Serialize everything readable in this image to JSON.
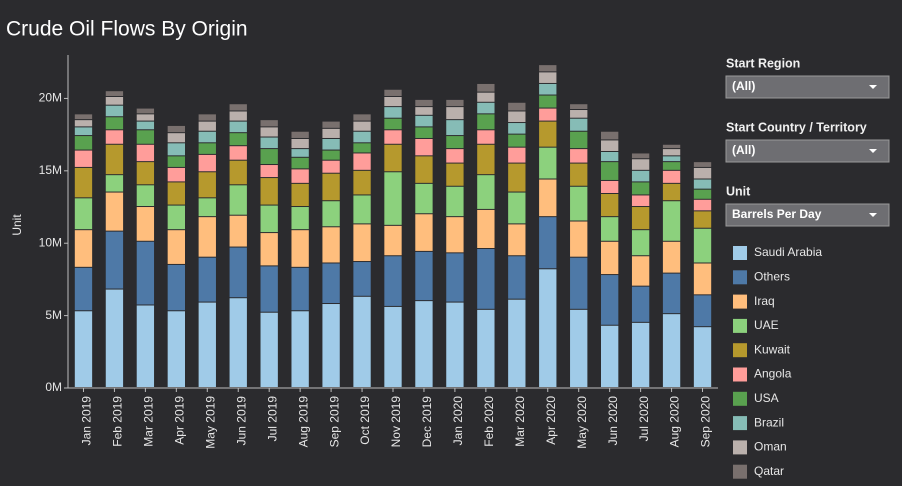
{
  "chart_data": {
    "type": "stacked-bar",
    "title": "Crude Oil Flows By Origin",
    "y_label": "Unit",
    "categories": [
      "Jan 2019",
      "Feb 2019",
      "Mar 2019",
      "Apr 2019",
      "May 2019",
      "Jun 2019",
      "Jul 2019",
      "Aug 2019",
      "Sep 2019",
      "Oct 2019",
      "Nov 2019",
      "Dec 2019",
      "Jan 2020",
      "Feb 2020",
      "Mar 2020",
      "Apr 2020",
      "May 2020",
      "Jun 2020",
      "Jul 2020",
      "Aug 2020",
      "Sep 2020"
    ],
    "ylim": [
      0,
      23000000
    ],
    "yticks": [
      {
        "value": 0,
        "label": "0M"
      },
      {
        "value": 5000000,
        "label": "5M"
      },
      {
        "value": 10000000,
        "label": "10M"
      },
      {
        "value": 15000000,
        "label": "15M"
      },
      {
        "value": 20000000,
        "label": "20M"
      }
    ],
    "grid": false,
    "series": [
      {
        "name": "Saudi Arabia",
        "color": "#a0cbe8",
        "values": [
          5300000,
          6800000,
          5700000,
          5300000,
          5900000,
          6200000,
          5200000,
          5300000,
          5800000,
          6300000,
          5600000,
          6000000,
          5900000,
          5400000,
          6100000,
          8200000,
          5400000,
          4300000,
          4500000,
          5100000,
          4200000
        ]
      },
      {
        "name": "Others",
        "color": "#4e79a7",
        "values": [
          3000000,
          4000000,
          4400000,
          3200000,
          3100000,
          3500000,
          3200000,
          3000000,
          2800000,
          2400000,
          3500000,
          3400000,
          3400000,
          4200000,
          3000000,
          3600000,
          3600000,
          3500000,
          2500000,
          2800000,
          2200000
        ]
      },
      {
        "name": "Iraq",
        "color": "#ffbe7d",
        "values": [
          2600000,
          2700000,
          2400000,
          2400000,
          2800000,
          2200000,
          2300000,
          2600000,
          2500000,
          2600000,
          2100000,
          2600000,
          2500000,
          2700000,
          2200000,
          2600000,
          2500000,
          2300000,
          2100000,
          2200000,
          2200000
        ]
      },
      {
        "name": "UAE",
        "color": "#8cd17d",
        "values": [
          2200000,
          1200000,
          1500000,
          1700000,
          1300000,
          2100000,
          1900000,
          1600000,
          1800000,
          2000000,
          3700000,
          2100000,
          2100000,
          2400000,
          2200000,
          2200000,
          2400000,
          1700000,
          1800000,
          2800000,
          2400000
        ]
      },
      {
        "name": "Kuwait",
        "color": "#b6992d",
        "values": [
          2100000,
          2100000,
          1600000,
          1600000,
          1800000,
          1700000,
          1900000,
          1600000,
          1900000,
          1700000,
          1900000,
          1900000,
          1600000,
          2100000,
          2000000,
          1800000,
          1600000,
          1600000,
          1600000,
          1200000,
          1200000
        ]
      },
      {
        "name": "Angola",
        "color": "#ff9d9a",
        "values": [
          1200000,
          1000000,
          1200000,
          1000000,
          1200000,
          1000000,
          900000,
          1000000,
          900000,
          1200000,
          1000000,
          1200000,
          1000000,
          1000000,
          1100000,
          900000,
          1000000,
          900000,
          800000,
          900000,
          800000
        ]
      },
      {
        "name": "USA",
        "color": "#59a14f",
        "values": [
          1000000,
          900000,
          1000000,
          800000,
          800000,
          900000,
          1100000,
          800000,
          700000,
          700000,
          800000,
          800000,
          900000,
          1100000,
          900000,
          900000,
          1200000,
          1300000,
          900000,
          600000,
          700000
        ]
      },
      {
        "name": "Brazil",
        "color": "#86bcb6",
        "values": [
          600000,
          800000,
          600000,
          900000,
          800000,
          800000,
          800000,
          600000,
          800000,
          800000,
          800000,
          800000,
          1100000,
          800000,
          800000,
          800000,
          900000,
          700000,
          800000,
          400000,
          700000
        ]
      },
      {
        "name": "Oman",
        "color": "#bab0ac",
        "values": [
          500000,
          600000,
          500000,
          700000,
          700000,
          700000,
          700000,
          700000,
          700000,
          700000,
          700000,
          600000,
          900000,
          700000,
          800000,
          800000,
          600000,
          800000,
          800000,
          500000,
          800000
        ]
      },
      {
        "name": "Qatar",
        "color": "#79706e",
        "values": [
          400000,
          400000,
          400000,
          500000,
          500000,
          500000,
          500000,
          500000,
          500000,
          500000,
          500000,
          500000,
          500000,
          600000,
          600000,
          500000,
          400000,
          600000,
          400000,
          300000,
          400000
        ]
      }
    ]
  },
  "filters": [
    {
      "label": "Start Region",
      "value": "(All)"
    },
    {
      "label": "Start Country / Territory",
      "value": "(All)"
    },
    {
      "label": "Unit",
      "value": "Barrels Per Day"
    }
  ]
}
